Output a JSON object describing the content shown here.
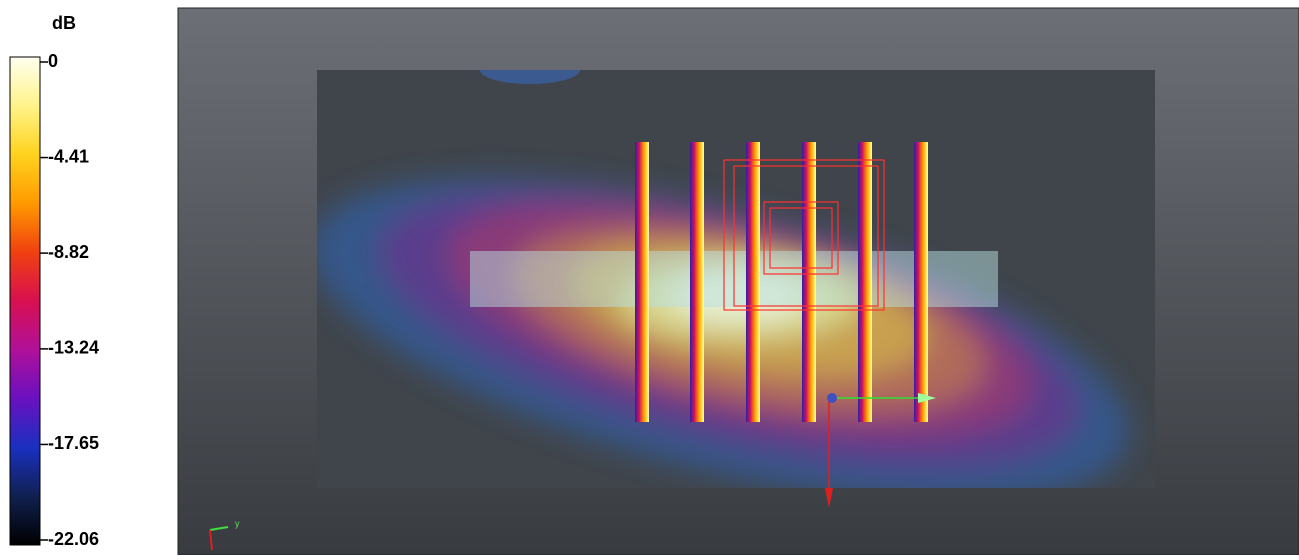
{
  "colorbar": {
    "title": "dB",
    "ticks": [
      0,
      -4.41,
      -8.82,
      -13.24,
      -17.65,
      -22.06
    ]
  },
  "axes_triad": {
    "label": "y"
  }
}
